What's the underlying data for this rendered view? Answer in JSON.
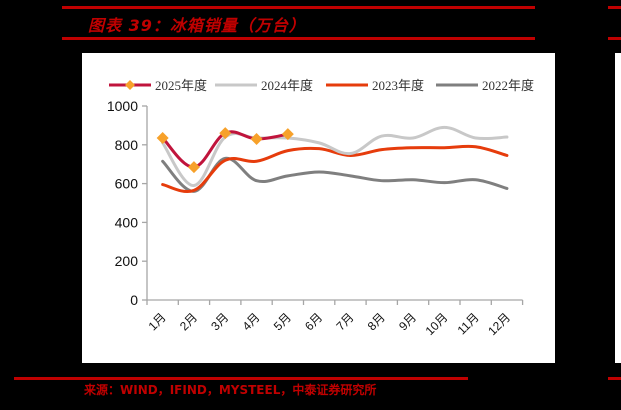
{
  "header": {
    "title": "图表 39：冰箱销量（万台）"
  },
  "footer": {
    "source": "来源：WIND，IFIND，MYSTEEL，中泰证券研究所"
  },
  "colors": {
    "rule": "#c00000",
    "s2025": "#c0143c",
    "s2025_marker": "#f7a12a",
    "s2024": "#c8c8c8",
    "s2023": "#e63c0c",
    "s2022": "#7f7f7f"
  },
  "chart_data": {
    "type": "line",
    "title": "冰箱销量（万台）",
    "xlabel": "",
    "ylabel": "",
    "ylim": [
      0,
      1000
    ],
    "yticks": [
      0,
      200,
      400,
      600,
      800,
      1000
    ],
    "grid": false,
    "legend_position": "top",
    "categories": [
      "1月",
      "2月",
      "3月",
      "4月",
      "5月",
      "6月",
      "7月",
      "8月",
      "9月",
      "10月",
      "11月",
      "12月"
    ],
    "series": [
      {
        "name": "2025年度",
        "values": [
          835,
          685,
          860,
          830,
          855,
          null,
          null,
          null,
          null,
          null,
          null,
          null
        ],
        "markers": true
      },
      {
        "name": "2024年度",
        "values": [
          810,
          590,
          840,
          835,
          835,
          810,
          755,
          845,
          835,
          890,
          835,
          840
        ]
      },
      {
        "name": "2023年度",
        "values": [
          595,
          565,
          720,
          715,
          770,
          780,
          745,
          775,
          785,
          785,
          790,
          745
        ]
      },
      {
        "name": "2022年度",
        "values": [
          715,
          560,
          730,
          615,
          640,
          660,
          640,
          615,
          620,
          605,
          620,
          575
        ]
      }
    ]
  }
}
